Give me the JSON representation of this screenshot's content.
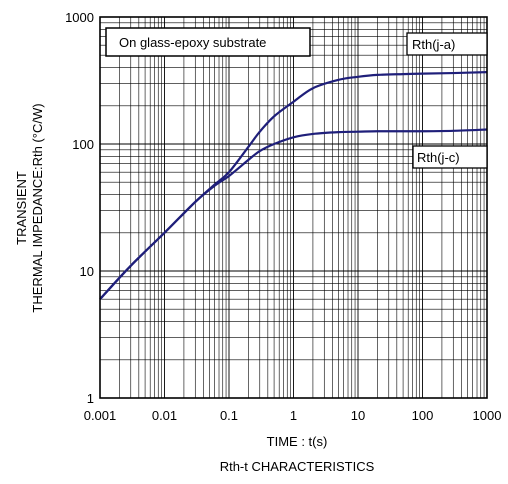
{
  "chart_data": {
    "type": "line",
    "title": "Rth-t CHARACTERISTICS",
    "xlabel": "TIME : t(s)",
    "ylabel_line1": "TRANSIENT",
    "ylabel_line2": "THERMAL IMPEDANCE:Rth  (°C/W)",
    "xscale": "log",
    "yscale": "log",
    "xlim": [
      0.001,
      1000
    ],
    "ylim": [
      1,
      1000
    ],
    "grid": true,
    "x_ticks": [
      {
        "value": 0.001,
        "label": "0.001"
      },
      {
        "value": 0.01,
        "label": "0.01"
      },
      {
        "value": 0.1,
        "label": "0.1"
      },
      {
        "value": 1,
        "label": "1"
      },
      {
        "value": 10,
        "label": "10"
      },
      {
        "value": 100,
        "label": "100"
      },
      {
        "value": 1000,
        "label": "1000"
      }
    ],
    "y_ticks": [
      {
        "value": 1,
        "label": "1"
      },
      {
        "value": 10,
        "label": "10"
      },
      {
        "value": 100,
        "label": "100"
      },
      {
        "value": 1000,
        "label": "1000"
      }
    ],
    "annotation": "On glass-epoxy substrate",
    "series": [
      {
        "name": "Rth(j-a)",
        "x": [
          0.001,
          0.003,
          0.01,
          0.03,
          0.06,
          0.1,
          0.2,
          0.3,
          0.5,
          1,
          2,
          5,
          10,
          20,
          50,
          100,
          300,
          1000
        ],
        "y": [
          6,
          11,
          20,
          35,
          48,
          60,
          95,
          125,
          165,
          215,
          275,
          320,
          338,
          350,
          355,
          358,
          362,
          368
        ]
      },
      {
        "name": "Rth(j-c)",
        "x": [
          0.001,
          0.003,
          0.01,
          0.03,
          0.06,
          0.1,
          0.2,
          0.3,
          0.5,
          1,
          2,
          5,
          10,
          20,
          50,
          100,
          300,
          1000
        ],
        "y": [
          6,
          11,
          20,
          35,
          47,
          56,
          75,
          88,
          100,
          113,
          120,
          124,
          125,
          126,
          126,
          126,
          127,
          130
        ]
      }
    ],
    "line_color": "#1f1f7a"
  }
}
